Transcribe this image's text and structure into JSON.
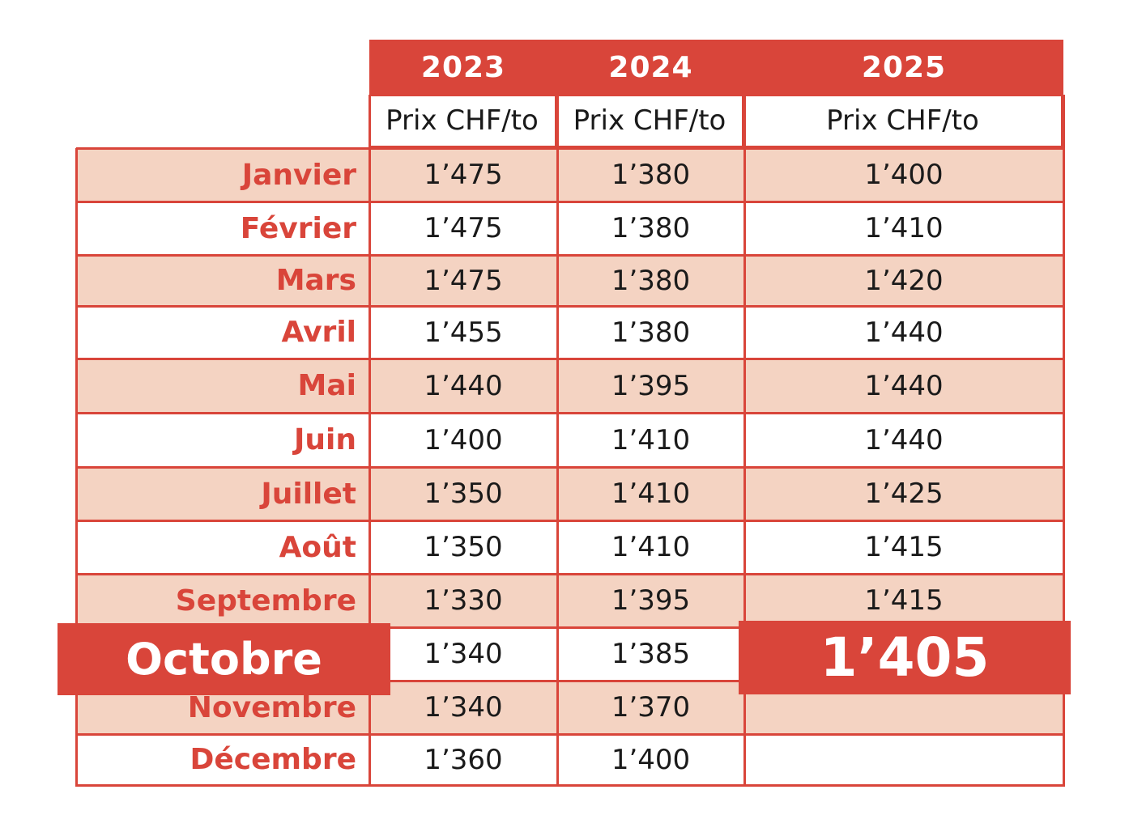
{
  "chart_data": {
    "type": "table",
    "columns": [
      {
        "year": "2023",
        "subheader": "Prix CHF/to"
      },
      {
        "year": "2024",
        "subheader": "Prix CHF/to"
      },
      {
        "year": "2025",
        "subheader": "Prix CHF/to"
      }
    ],
    "rows": [
      {
        "month": "Janvier",
        "values": [
          "1’475",
          "1’380",
          "1’400"
        ]
      },
      {
        "month": "Février",
        "values": [
          "1’475",
          "1’380",
          "1’410"
        ]
      },
      {
        "month": "Mars",
        "values": [
          "1’475",
          "1’380",
          "1’420"
        ]
      },
      {
        "month": "Avril",
        "values": [
          "1’455",
          "1’380",
          "1’440"
        ]
      },
      {
        "month": "Mai",
        "values": [
          "1’440",
          "1’395",
          "1’440"
        ]
      },
      {
        "month": "Juin",
        "values": [
          "1’400",
          "1’410",
          "1’440"
        ]
      },
      {
        "month": "Juillet",
        "values": [
          "1’350",
          "1’410",
          "1’425"
        ]
      },
      {
        "month": "Août",
        "values": [
          "1’350",
          "1’410",
          "1’415"
        ]
      },
      {
        "month": "Septembre",
        "values": [
          "1’330",
          "1’395",
          "1’415"
        ]
      },
      {
        "month": "Octobre",
        "values": [
          "1’340",
          "1’385",
          "1’405"
        ]
      },
      {
        "month": "Novembre",
        "values": [
          "1’340",
          "1’370",
          ""
        ]
      },
      {
        "month": "Décembre",
        "values": [
          "1’360",
          "1’400",
          ""
        ]
      }
    ],
    "highlight": {
      "month": "Octobre",
      "value": "1’405"
    }
  },
  "colors": {
    "accent": "#d9453a",
    "row_alt": "#f4d3c2",
    "text": "#1a1a1a"
  }
}
